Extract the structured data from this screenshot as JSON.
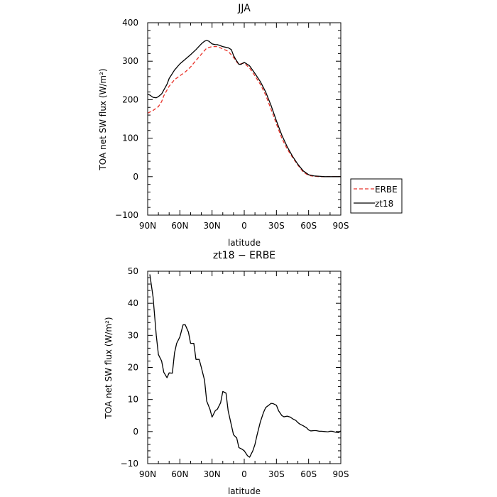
{
  "colors": {
    "ERBE": "#e8332a",
    "zt18": "#000000",
    "axis": "#000000"
  },
  "chart_data": [
    {
      "type": "line",
      "title": "JJA",
      "xlabel": "latitude",
      "ylabel": "TOA net SW flux (W/m²)",
      "xlim": [
        90,
        -90
      ],
      "ylim": [
        -100,
        400
      ],
      "xticks": [
        90,
        60,
        30,
        0,
        -30,
        -60,
        -90
      ],
      "xtick_labels": [
        "90N",
        "60N",
        "30N",
        "0",
        "30S",
        "60S",
        "90S"
      ],
      "yticks": [
        -100,
        0,
        100,
        200,
        300,
        400
      ],
      "ytick_labels": [
        "−100",
        "0",
        "100",
        "200",
        "300",
        "400"
      ],
      "legend": {
        "position": "outside-right",
        "entries": [
          {
            "name": "ERBE",
            "style": "dashed",
            "color": "#e8332a"
          },
          {
            "name": "zt18",
            "style": "solid",
            "color": "#000000"
          }
        ]
      },
      "series": [
        {
          "name": "ERBE",
          "style": "dashed",
          "color": "#e8332a",
          "x": [
            90,
            85,
            80,
            77,
            75,
            72,
            70,
            65,
            60,
            55,
            50,
            45,
            40,
            35,
            30,
            25,
            20,
            15,
            10,
            7,
            5,
            2,
            0,
            -5,
            -10,
            -15,
            -20,
            -25,
            -30,
            -35,
            -40,
            -45,
            -50,
            -55,
            -60,
            -65,
            -70,
            -75,
            -80,
            -85,
            -90
          ],
          "y": [
            165,
            172,
            182,
            195,
            210,
            225,
            235,
            252,
            262,
            272,
            285,
            302,
            318,
            334,
            338,
            338,
            332,
            326,
            310,
            298,
            292,
            294,
            295,
            282,
            262,
            240,
            212,
            175,
            137,
            100,
            72,
            50,
            30,
            12,
            3,
            1,
            0,
            0,
            0,
            0,
            0
          ]
        },
        {
          "name": "zt18",
          "style": "solid",
          "color": "#000000",
          "x": [
            90,
            88,
            85,
            82,
            80,
            77,
            75,
            72,
            70,
            65,
            60,
            55,
            50,
            45,
            40,
            37,
            35,
            33,
            30,
            27,
            25,
            22,
            20,
            17,
            15,
            12,
            10,
            8,
            5,
            3,
            0,
            -5,
            -10,
            -15,
            -20,
            -25,
            -30,
            -35,
            -40,
            -45,
            -50,
            -55,
            -60,
            -65,
            -70,
            -75,
            -80,
            -85,
            -90
          ],
          "y": [
            214,
            212,
            206,
            205,
            208,
            215,
            225,
            240,
            255,
            277,
            293,
            305,
            317,
            330,
            345,
            352,
            354,
            352,
            345,
            343,
            343,
            340,
            338,
            336,
            335,
            330,
            315,
            305,
            292,
            292,
            297,
            288,
            268,
            247,
            220,
            185,
            145,
            108,
            78,
            53,
            32,
            15,
            5,
            2,
            1,
            0,
            0,
            0,
            0
          ]
        }
      ]
    },
    {
      "type": "line",
      "title": "zt18 − ERBE",
      "xlabel": "latitude",
      "ylabel": "TOA net SW flux (W/m²)",
      "xlim": [
        90,
        -90
      ],
      "ylim": [
        -10,
        50
      ],
      "xticks": [
        90,
        60,
        30,
        0,
        -30,
        -60,
        -90
      ],
      "xtick_labels": [
        "90N",
        "60N",
        "30N",
        "0",
        "30S",
        "60S",
        "90S"
      ],
      "yticks": [
        -10,
        0,
        10,
        20,
        30,
        40,
        50
      ],
      "ytick_labels": [
        "−10",
        "0",
        "10",
        "20",
        "30",
        "40",
        "50"
      ],
      "series": [
        {
          "name": "zt18",
          "style": "solid",
          "color": "#000000",
          "x": [
            88,
            85,
            82,
            80,
            77,
            75,
            72,
            70,
            67,
            65,
            63,
            60,
            57,
            55,
            52,
            50,
            47,
            45,
            42,
            40,
            37,
            35,
            32,
            30,
            27,
            25,
            22,
            20,
            17,
            15,
            12,
            10,
            7,
            5,
            2,
            0,
            -3,
            -5,
            -8,
            -10,
            -12,
            -15,
            -18,
            -20,
            -22,
            -25,
            -27,
            -30,
            -32,
            -35,
            -37,
            -40,
            -43,
            -45,
            -48,
            -50,
            -52,
            -55,
            -58,
            -60,
            -62,
            -65,
            -67,
            -70,
            -72,
            -75,
            -78,
            -80,
            -82,
            -85,
            -88,
            -90
          ],
          "y": [
            49,
            42,
            30,
            24,
            22,
            18.5,
            16.8,
            18.3,
            18.2,
            24.5,
            27.5,
            29.5,
            33.3,
            33.3,
            31,
            27.5,
            27.5,
            22.5,
            22.5,
            20,
            16,
            9.5,
            7,
            4.5,
            6.5,
            7,
            9,
            12.5,
            12,
            6.5,
            2,
            -1,
            -2,
            -5,
            -5.5,
            -6,
            -7.5,
            -8,
            -6,
            -4,
            -1,
            3,
            6,
            7.5,
            8,
            8.8,
            8.7,
            8.2,
            6.5,
            5,
            4.6,
            4.8,
            4.5,
            4,
            3.5,
            2.8,
            2.3,
            1.8,
            1.2,
            0.5,
            0.2,
            0.3,
            0.3,
            0.1,
            0.1,
            0,
            -0.1,
            0.1,
            0.1,
            -0.2,
            -0.3,
            0.2
          ]
        }
      ]
    }
  ]
}
